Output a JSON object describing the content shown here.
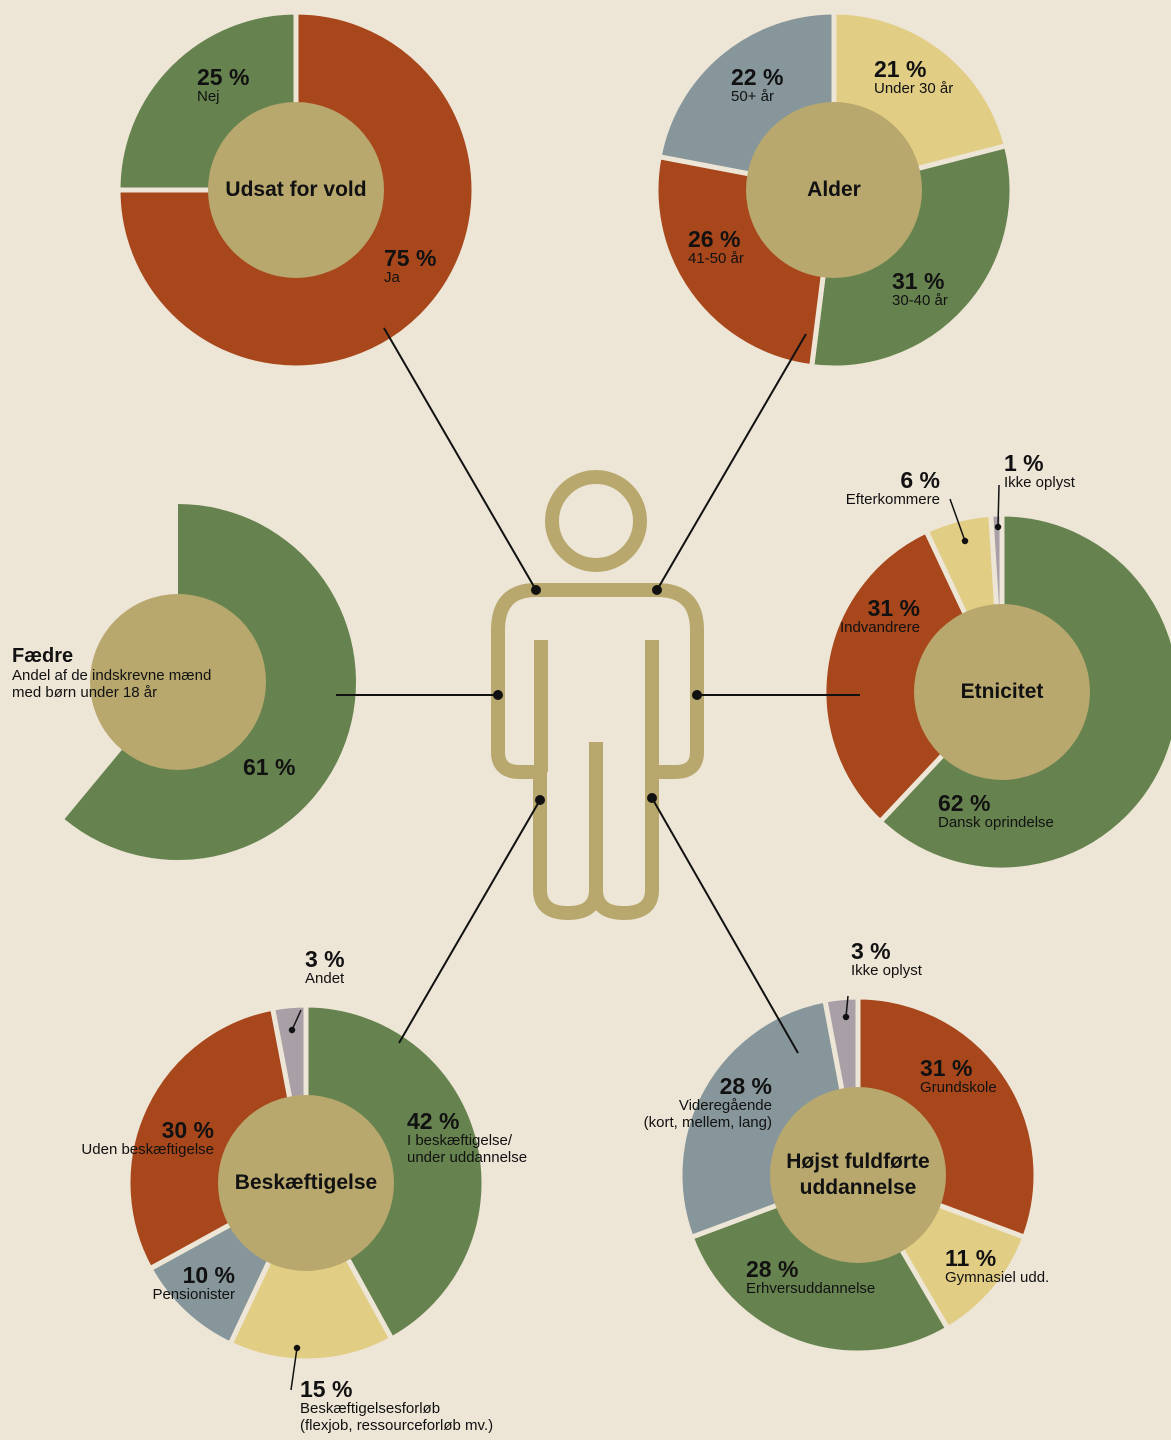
{
  "chart_data": [
    {
      "type": "pie",
      "title": "Udsat for vold",
      "categories": [
        "Ja",
        "Nej"
      ],
      "values": [
        75,
        25
      ],
      "value_labels": [
        "75 %",
        "25 %"
      ],
      "colors": [
        "#a8471b",
        "#66834f"
      ]
    },
    {
      "type": "pie",
      "title": "Alder",
      "categories": [
        "Under 30 år",
        "30-40 år",
        "41-50 år",
        "50+ år"
      ],
      "values": [
        21,
        31,
        26,
        22
      ],
      "value_labels": [
        "21 %",
        "31 %",
        "26 %",
        "22 %"
      ],
      "colors": [
        "#e2cd84",
        "#66834f",
        "#a8471b",
        "#86969a"
      ]
    },
    {
      "type": "pie",
      "title": "Fædre",
      "subtitle": "Andel af de indskrevne mænd\nmed børn under 18 år",
      "values": [
        61
      ],
      "value_labels": [
        "61 %"
      ],
      "colors": [
        "#66834f"
      ]
    },
    {
      "type": "pie",
      "title": "Etnicitet",
      "categories": [
        "Dansk oprindelse",
        "Indvandrere",
        "Efterkommere",
        "Ikke oplyst"
      ],
      "values": [
        62,
        31,
        6,
        1
      ],
      "value_labels": [
        "62 %",
        "31 %",
        "6 %",
        "1 %"
      ],
      "colors": [
        "#66834f",
        "#a8471b",
        "#e2cd84",
        "#a8a0a6"
      ]
    },
    {
      "type": "pie",
      "title": "Beskæftigelse",
      "categories": [
        "I beskæftigelse/\nunder uddannelse",
        "Beskæftigelsesforløb\n(flexjob, ressourceforløb mv.)",
        "Pensionister",
        "Uden beskæftigelse",
        "Andet"
      ],
      "values": [
        42,
        15,
        10,
        30,
        3
      ],
      "value_labels": [
        "42 %",
        "15 %",
        "10 %",
        "30 %",
        "3 %"
      ],
      "colors": [
        "#66834f",
        "#e2cd84",
        "#86969a",
        "#a8471b",
        "#a8a0a6"
      ]
    },
    {
      "type": "pie",
      "title": "Højst fuldførte uddannelse",
      "categories": [
        "Grundskole",
        "Gymnasiel udd.",
        "Erhversuddannelse",
        "Videregående\n(kort, mellem, lang)",
        "Ikke oplyst"
      ],
      "values": [
        31,
        11,
        28,
        28,
        3
      ],
      "value_labels": [
        "31 %",
        "11 %",
        "28 %",
        "28 %",
        "3 %"
      ],
      "colors": [
        "#a8471b",
        "#e2cd84",
        "#66834f",
        "#86969a",
        "#a8a0a6"
      ]
    }
  ]
}
